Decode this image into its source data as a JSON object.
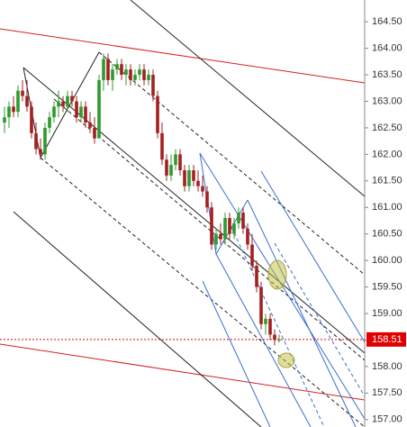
{
  "chart_data": {
    "type": "candlestick",
    "ylim": [
      156.86,
      164.91
    ],
    "yticks": [
      {
        "value": 157,
        "label": "157.00"
      },
      {
        "value": 157.5,
        "label": "157.50"
      },
      {
        "value": 158,
        "label": "158.00"
      },
      {
        "value": 158.5,
        "label": "158.50"
      },
      {
        "value": 159,
        "label": "159.00"
      },
      {
        "value": 159.5,
        "label": "159.50"
      },
      {
        "value": 160,
        "label": "160.00"
      },
      {
        "value": 160.5,
        "label": "160.50"
      },
      {
        "value": 161,
        "label": "161.00"
      },
      {
        "value": 161.5,
        "label": "161.50"
      },
      {
        "value": 162,
        "label": "162.00"
      },
      {
        "value": 162.5,
        "label": "162.50"
      },
      {
        "value": 163,
        "label": "163.00"
      },
      {
        "value": 163.5,
        "label": "163.50"
      },
      {
        "value": 164,
        "label": "164.00"
      },
      {
        "value": 164.5,
        "label": "164.50"
      }
    ],
    "up_color": "#2f9a2f",
    "down_color": "#a32020",
    "last_price": 158.51,
    "last_price_color": "#e00000",
    "ohlc": [
      [
        162.6,
        162.9,
        162.4,
        162.7
      ],
      [
        162.7,
        163.0,
        162.5,
        162.9
      ],
      [
        162.9,
        163.1,
        162.7,
        162.8
      ],
      [
        162.8,
        163.3,
        162.7,
        163.2
      ],
      [
        163.2,
        163.4,
        163.0,
        163.1
      ],
      [
        163.1,
        163.4,
        162.8,
        162.9
      ],
      [
        162.9,
        163.0,
        162.3,
        162.4
      ],
      [
        162.4,
        162.6,
        162.0,
        162.1
      ],
      [
        162.1,
        162.3,
        161.9,
        162.0
      ],
      [
        162.0,
        162.6,
        161.9,
        162.5
      ],
      [
        162.5,
        162.8,
        162.4,
        162.7
      ],
      [
        162.7,
        163.0,
        162.6,
        162.9
      ],
      [
        162.9,
        163.2,
        162.7,
        163.0
      ],
      [
        163.0,
        163.1,
        162.8,
        162.9
      ],
      [
        162.9,
        163.2,
        162.8,
        163.1
      ],
      [
        163.1,
        163.2,
        162.9,
        163.0
      ],
      [
        163.0,
        163.1,
        162.6,
        162.7
      ],
      [
        162.7,
        163.0,
        162.6,
        162.9
      ],
      [
        162.9,
        163.0,
        162.5,
        162.6
      ],
      [
        162.6,
        162.8,
        162.4,
        162.5
      ],
      [
        162.5,
        162.7,
        162.2,
        162.3
      ],
      [
        162.3,
        163.5,
        162.3,
        163.4
      ],
      [
        163.4,
        163.9,
        163.2,
        163.8
      ],
      [
        163.8,
        163.9,
        163.3,
        163.4
      ],
      [
        163.4,
        163.7,
        163.2,
        163.6
      ],
      [
        163.6,
        163.8,
        163.5,
        163.7
      ],
      [
        163.7,
        163.8,
        163.4,
        163.5
      ],
      [
        163.5,
        163.7,
        163.3,
        163.6
      ],
      [
        163.6,
        163.7,
        163.3,
        163.4
      ],
      [
        163.4,
        163.6,
        163.3,
        163.5
      ],
      [
        163.5,
        163.7,
        163.4,
        163.6
      ],
      [
        163.6,
        163.7,
        163.3,
        163.4
      ],
      [
        163.4,
        163.6,
        163.3,
        163.5
      ],
      [
        163.5,
        163.6,
        163.0,
        163.1
      ],
      [
        163.1,
        163.2,
        162.3,
        162.4
      ],
      [
        162.4,
        162.6,
        161.8,
        161.9
      ],
      [
        161.9,
        162.0,
        161.5,
        161.6
      ],
      [
        161.6,
        162.0,
        161.5,
        161.8
      ],
      [
        161.8,
        162.1,
        161.7,
        162.0
      ],
      [
        162.0,
        162.1,
        161.6,
        161.7
      ],
      [
        161.7,
        161.8,
        161.3,
        161.4
      ],
      [
        161.4,
        161.8,
        161.3,
        161.7
      ],
      [
        161.7,
        161.8,
        161.4,
        161.5
      ],
      [
        161.5,
        161.7,
        161.3,
        161.4
      ],
      [
        161.4,
        161.6,
        161.2,
        161.3
      ],
      [
        161.3,
        161.4,
        160.9,
        161.0
      ],
      [
        161.0,
        161.1,
        160.2,
        160.3
      ],
      [
        160.3,
        160.6,
        160.2,
        160.5
      ],
      [
        160.5,
        160.7,
        160.3,
        160.4
      ],
      [
        160.4,
        160.9,
        160.3,
        160.8
      ],
      [
        160.8,
        160.9,
        160.4,
        160.5
      ],
      [
        160.5,
        160.8,
        160.4,
        160.7
      ],
      [
        160.7,
        161.0,
        160.6,
        160.9
      ],
      [
        160.9,
        161.0,
        160.5,
        160.6
      ],
      [
        160.6,
        160.7,
        160.2,
        160.3
      ],
      [
        160.3,
        160.5,
        159.8,
        159.9
      ],
      [
        159.9,
        160.0,
        159.4,
        159.5
      ],
      [
        159.5,
        159.6,
        158.7,
        158.8
      ],
      [
        158.8,
        159.0,
        158.6,
        158.9
      ],
      [
        158.9,
        159.0,
        158.5,
        158.6
      ],
      [
        158.6,
        158.7,
        158.4,
        158.5
      ],
      [
        158.5,
        158.6,
        158.45,
        158.51
      ]
    ]
  }
}
